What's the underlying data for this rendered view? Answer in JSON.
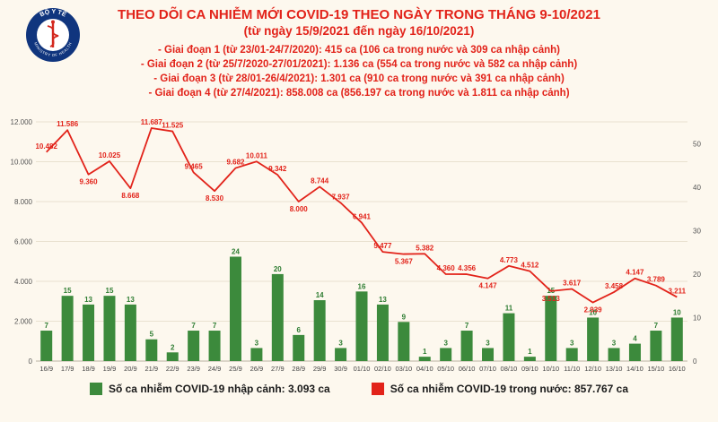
{
  "header": {
    "logo": {
      "arc_top": "BỘ Y TẾ",
      "arc_bottom": "MINISTRY OF HEALTH"
    },
    "title_line1": "THEO DÕI CA NHIỄM MỚI COVID-19 THEO NGÀY TRONG THÁNG 9-10/2021",
    "title_line2": "(từ ngày 15/9/2021 đến ngày 16/10/2021)",
    "bullets": [
      "- Giai đoạn 1 (từ 23/01-24/7/2020): 415 ca (106 ca trong nước và 309 ca nhập cảnh)",
      "- Giai đoạn 2 (từ 25/7/2020-27/01/2021): 1.136 ca (554 ca trong nước và 582 ca nhập cảnh)",
      "- Giai đoạn 3 (từ 28/01-26/4/2021): 1.301 ca (910 ca trong nước và 391 ca nhập cảnh)",
      "- Giai đoạn 4 (từ 27/4/2021): 858.008 ca (856.197 ca trong nước và 1.811 ca nhập cảnh)"
    ]
  },
  "colors": {
    "bar": "#3c8a3c",
    "bar_label": "#2e7d32",
    "line": "#e2231a",
    "grid": "#e9e1d0",
    "axis_text": "#555555",
    "background": "#fdf8ee",
    "title": "#e2231a"
  },
  "chart_data": {
    "type": "bar+line",
    "title": "THEO DÕI CA NHIỄM MỚI COVID-19 THEO NGÀY TRONG THÁNG 9-10/2021",
    "subtitle": "(từ ngày 15/9/2021 đến ngày 16/10/2021)",
    "categories": [
      "16/9",
      "17/9",
      "18/9",
      "19/9",
      "20/9",
      "21/9",
      "22/9",
      "23/9",
      "24/9",
      "25/9",
      "26/9",
      "27/9",
      "28/9",
      "29/9",
      "30/9",
      "01/10",
      "02/10",
      "03/10",
      "04/10",
      "05/10",
      "06/10",
      "07/10",
      "08/10",
      "09/10",
      "10/10",
      "11/10",
      "12/10",
      "13/10",
      "14/10",
      "15/10",
      "16/10"
    ],
    "series": [
      {
        "name": "Số ca nhiễm COVID-19 nhập cảnh",
        "type": "bar",
        "axis": "right",
        "values": [
          7,
          15,
          13,
          15,
          13,
          5,
          2,
          7,
          7,
          24,
          3,
          20,
          6,
          14,
          3,
          16,
          13,
          9,
          1,
          3,
          7,
          3,
          11,
          1,
          15,
          3,
          10,
          3,
          4,
          7,
          10
        ]
      },
      {
        "name": "Số ca nhiễm COVID-19 trong nước",
        "type": "line",
        "axis": "left",
        "values": [
          10482,
          11586,
          9360,
          10025,
          8668,
          11687,
          11525,
          9465,
          8530,
          9682,
          10011,
          9342,
          8000,
          8744,
          7937,
          6941,
          5477,
          5367,
          5382,
          4360,
          4356,
          4147,
          4773,
          4512,
          3513,
          3617,
          2939,
          3458,
          4147,
          3789,
          3211
        ]
      }
    ],
    "left_axis": {
      "min": 0,
      "max": 12000,
      "tick_values": [
        12000,
        10000,
        8000,
        6000,
        4000,
        2000,
        0
      ],
      "tick_labels": [
        "12.000",
        "10.000",
        "8.000",
        "6.000",
        "4.000",
        "2.000",
        "0"
      ]
    },
    "right_axis": {
      "min": 0,
      "max": 55,
      "tick_values": [
        50,
        40,
        30,
        20,
        10,
        0
      ],
      "tick_labels": [
        "50",
        "40",
        "30",
        "20",
        "10",
        "0"
      ]
    },
    "grid": true,
    "legend_position": "bottom",
    "annotations": [
      "Giai đoạn 1 (từ 23/01-24/7/2020): 415 ca (106 ca trong nước và 309 ca nhập cảnh)",
      "Giai đoạn 2 (từ 25/7/2020-27/01/2021): 1.136 ca (554 ca trong nước và 582 ca nhập cảnh)",
      "Giai đoạn 3 (từ 28/01-26/4/2021): 1.301 ca (910 ca trong nước và 391 ca nhập cảnh)",
      "Giai đoạn 4 (từ 27/4/2021): 858.008 ca (856.197 ca trong nước và 1.811 ca nhập cảnh)"
    ]
  },
  "legend": {
    "items": [
      {
        "label": "Số ca nhiễm COVID-19 nhập cảnh: 3.093 ca",
        "color": "#3c8a3c"
      },
      {
        "label": "Số ca nhiễm COVID-19 trong nước: 857.767 ca",
        "color": "#e2231a"
      }
    ]
  }
}
